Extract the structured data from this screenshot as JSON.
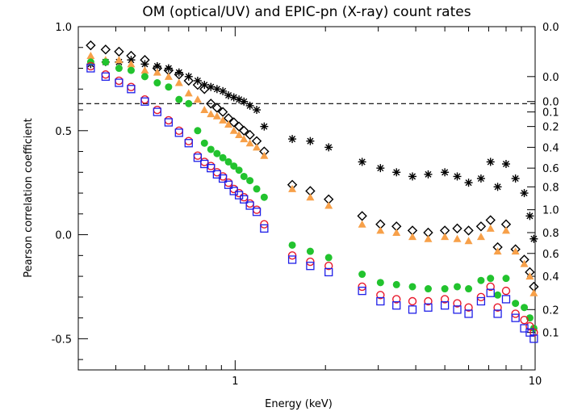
{
  "chart_data": {
    "type": "scatter",
    "title": "OM (optical/UV) and EPIC-pn (X-ray) count rates",
    "xlabel": "Energy (keV)",
    "ylabel": "Pearson correlation coefficient",
    "x_scale": "log",
    "xlim": [
      0.3,
      10
    ],
    "ylim": [
      -0.65,
      1.0
    ],
    "x_tick_labels": [
      {
        "value": 1,
        "label": "1"
      },
      {
        "value": 10,
        "label": "10"
      }
    ],
    "y_tick_labels": [
      {
        "value": 1.0,
        "label": "1.0"
      },
      {
        "value": 0.5,
        "label": "0.5"
      },
      {
        "value": 0.0,
        "label": "0.0"
      },
      {
        "value": -0.5,
        "label": "-0.5"
      }
    ],
    "right_axis_labels": [
      {
        "y": 1.0,
        "label": "0.0"
      },
      {
        "y": 0.76,
        "label": "0.0"
      },
      {
        "y": 0.64,
        "label": "0.0"
      },
      {
        "y": 0.59,
        "label": "0.1"
      },
      {
        "y": 0.52,
        "label": "0.2"
      },
      {
        "y": 0.42,
        "label": "0.4"
      },
      {
        "y": 0.32,
        "label": "0.6"
      },
      {
        "y": 0.23,
        "label": "0.8"
      },
      {
        "y": 0.12,
        "label": "1.0"
      },
      {
        "y": 0.01,
        "label": "0.8"
      },
      {
        "y": -0.09,
        "label": "0.6"
      },
      {
        "y": -0.2,
        "label": "0.4"
      },
      {
        "y": -0.36,
        "label": "0.2"
      },
      {
        "y": -0.47,
        "label": "0.1"
      }
    ],
    "reference_line": {
      "y": 0.63,
      "style": "dashed"
    },
    "x": [
      0.33,
      0.37,
      0.41,
      0.45,
      0.5,
      0.55,
      0.6,
      0.65,
      0.7,
      0.75,
      0.79,
      0.83,
      0.87,
      0.91,
      0.95,
      0.99,
      1.03,
      1.07,
      1.12,
      1.18,
      1.25,
      1.55,
      1.78,
      2.05,
      2.65,
      3.05,
      3.45,
      3.9,
      4.4,
      5.0,
      5.5,
      6.0,
      6.6,
      7.1,
      7.5,
      8.0,
      8.6,
      9.2,
      9.6,
      9.9
    ],
    "series": [
      {
        "marker": "asterisk",
        "color": "#000000",
        "values": [
          0.82,
          0.83,
          0.83,
          0.84,
          0.82,
          0.81,
          0.8,
          0.78,
          0.76,
          0.74,
          0.72,
          0.71,
          0.7,
          0.69,
          0.67,
          0.66,
          0.65,
          0.64,
          0.62,
          0.6,
          0.52,
          0.46,
          0.45,
          0.42,
          0.35,
          0.32,
          0.3,
          0.28,
          0.29,
          0.3,
          0.28,
          0.25,
          0.27,
          0.35,
          0.23,
          0.34,
          0.27,
          0.2,
          0.09,
          -0.02
        ]
      },
      {
        "marker": "diamond",
        "color": "#000000",
        "values": [
          0.91,
          0.89,
          0.88,
          0.86,
          0.84,
          0.8,
          0.79,
          0.77,
          0.74,
          0.72,
          0.7,
          0.63,
          0.61,
          0.59,
          0.56,
          0.54,
          0.52,
          0.5,
          0.48,
          0.45,
          0.4,
          0.24,
          0.21,
          0.17,
          0.09,
          0.05,
          0.04,
          0.02,
          0.01,
          0.02,
          0.03,
          0.02,
          0.04,
          0.07,
          -0.06,
          0.05,
          -0.07,
          -0.12,
          -0.18,
          -0.25
        ]
      },
      {
        "marker": "triangle",
        "color": "#f7a049",
        "values": [
          0.86,
          0.84,
          0.84,
          0.82,
          0.79,
          0.78,
          0.76,
          0.73,
          0.68,
          0.65,
          0.6,
          0.58,
          0.57,
          0.55,
          0.53,
          0.5,
          0.48,
          0.46,
          0.44,
          0.42,
          0.38,
          0.22,
          0.18,
          0.14,
          0.05,
          0.02,
          0.01,
          -0.01,
          -0.02,
          -0.01,
          -0.02,
          -0.03,
          -0.01,
          0.03,
          -0.08,
          0.02,
          -0.08,
          -0.14,
          -0.2,
          -0.28
        ]
      },
      {
        "marker": "filled-circle",
        "color": "#22c32e",
        "values": [
          0.83,
          0.83,
          0.8,
          0.79,
          0.76,
          0.73,
          0.71,
          0.65,
          0.63,
          0.5,
          0.44,
          0.41,
          0.39,
          0.37,
          0.35,
          0.33,
          0.31,
          0.28,
          0.26,
          0.22,
          0.18,
          -0.05,
          -0.08,
          -0.11,
          -0.19,
          -0.23,
          -0.24,
          -0.25,
          -0.26,
          -0.26,
          -0.25,
          -0.26,
          -0.22,
          -0.21,
          -0.29,
          -0.21,
          -0.33,
          -0.35,
          -0.4,
          -0.45
        ]
      },
      {
        "marker": "open-circle",
        "color": "#e8182b",
        "values": [
          0.81,
          0.77,
          0.74,
          0.71,
          0.65,
          0.6,
          0.55,
          0.5,
          0.45,
          0.38,
          0.35,
          0.33,
          0.3,
          0.28,
          0.25,
          0.22,
          0.2,
          0.18,
          0.15,
          0.12,
          0.05,
          -0.1,
          -0.13,
          -0.15,
          -0.25,
          -0.29,
          -0.31,
          -0.32,
          -0.32,
          -0.31,
          -0.33,
          -0.35,
          -0.3,
          -0.25,
          -0.35,
          -0.27,
          -0.38,
          -0.41,
          -0.44,
          -0.47
        ]
      },
      {
        "marker": "open-square",
        "color": "#1f1fe8",
        "values": [
          0.8,
          0.76,
          0.73,
          0.7,
          0.64,
          0.59,
          0.54,
          0.49,
          0.44,
          0.37,
          0.34,
          0.32,
          0.29,
          0.27,
          0.24,
          0.21,
          0.19,
          0.17,
          0.14,
          0.11,
          0.03,
          -0.12,
          -0.15,
          -0.18,
          -0.27,
          -0.32,
          -0.34,
          -0.36,
          -0.35,
          -0.34,
          -0.36,
          -0.38,
          -0.32,
          -0.28,
          -0.38,
          -0.31,
          -0.4,
          -0.45,
          -0.47,
          -0.5
        ]
      }
    ]
  }
}
